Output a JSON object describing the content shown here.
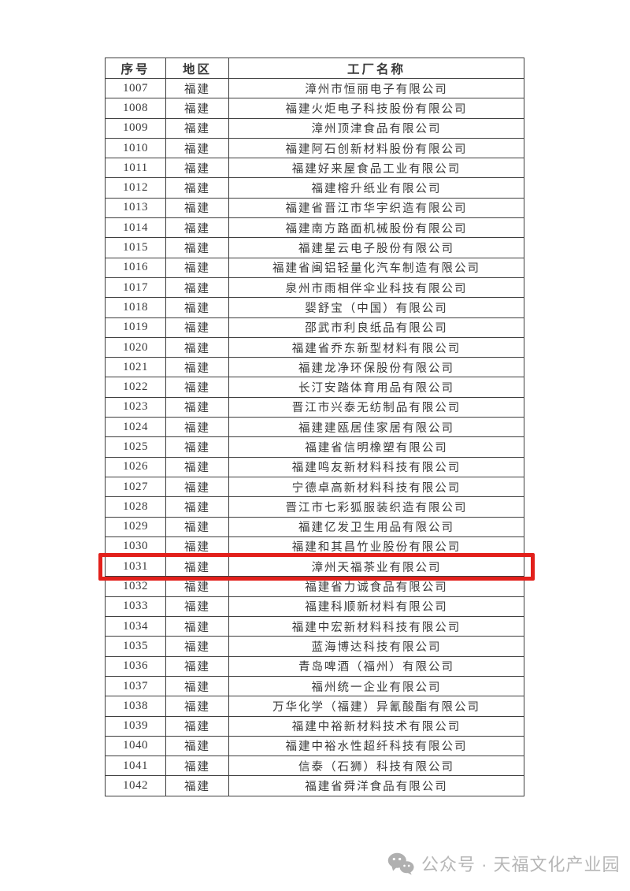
{
  "table": {
    "headers": [
      "序号",
      "地区",
      "工厂名称"
    ],
    "highlighted_no": "1031",
    "highlight_color": "#e2201b",
    "rows": [
      {
        "no": "1007",
        "region": "福建",
        "name": "漳州市恒丽电子有限公司"
      },
      {
        "no": "1008",
        "region": "福建",
        "name": "福建火炬电子科技股份有限公司"
      },
      {
        "no": "1009",
        "region": "福建",
        "name": "漳州顶津食品有限公司"
      },
      {
        "no": "1010",
        "region": "福建",
        "name": "福建阿石创新材料股份有限公司"
      },
      {
        "no": "1011",
        "region": "福建",
        "name": "福建好来屋食品工业有限公司"
      },
      {
        "no": "1012",
        "region": "福建",
        "name": "福建榕升纸业有限公司"
      },
      {
        "no": "1013",
        "region": "福建",
        "name": "福建省晋江市华宇织造有限公司"
      },
      {
        "no": "1014",
        "region": "福建",
        "name": "福建南方路面机械股份有限公司"
      },
      {
        "no": "1015",
        "region": "福建",
        "name": "福建星云电子股份有限公司"
      },
      {
        "no": "1016",
        "region": "福建",
        "name": "福建省闽铝轻量化汽车制造有限公司"
      },
      {
        "no": "1017",
        "region": "福建",
        "name": "泉州市雨相伴伞业科技有限公司"
      },
      {
        "no": "1018",
        "region": "福建",
        "name": "婴舒宝（中国）有限公司"
      },
      {
        "no": "1019",
        "region": "福建",
        "name": "邵武市利良纸品有限公司"
      },
      {
        "no": "1020",
        "region": "福建",
        "name": "福建省乔东新型材料有限公司"
      },
      {
        "no": "1021",
        "region": "福建",
        "name": "福建龙净环保股份有限公司"
      },
      {
        "no": "1022",
        "region": "福建",
        "name": "长汀安踏体育用品有限公司"
      },
      {
        "no": "1023",
        "region": "福建",
        "name": "晋江市兴泰无纺制品有限公司"
      },
      {
        "no": "1024",
        "region": "福建",
        "name": "福建建瓯居佳家居有限公司"
      },
      {
        "no": "1025",
        "region": "福建",
        "name": "福建省信明橡塑有限公司"
      },
      {
        "no": "1026",
        "region": "福建",
        "name": "福建鸣友新材料科技有限公司"
      },
      {
        "no": "1027",
        "region": "福建",
        "name": "宁德卓高新材料科技有限公司"
      },
      {
        "no": "1028",
        "region": "福建",
        "name": "晋江市七彩狐服装织造有限公司"
      },
      {
        "no": "1029",
        "region": "福建",
        "name": "福建亿发卫生用品有限公司"
      },
      {
        "no": "1030",
        "region": "福建",
        "name": "福建和其昌竹业股份有限公司"
      },
      {
        "no": "1031",
        "region": "福建",
        "name": "漳州天福茶业有限公司"
      },
      {
        "no": "1032",
        "region": "福建",
        "name": "福建省力诚食品有限公司"
      },
      {
        "no": "1033",
        "region": "福建",
        "name": "福建科顺新材料有限公司"
      },
      {
        "no": "1034",
        "region": "福建",
        "name": "福建中宏新材料科技有限公司"
      },
      {
        "no": "1035",
        "region": "福建",
        "name": "蓝海博达科技有限公司"
      },
      {
        "no": "1036",
        "region": "福建",
        "name": "青岛啤酒（福州）有限公司"
      },
      {
        "no": "1037",
        "region": "福建",
        "name": "福州统一企业有限公司"
      },
      {
        "no": "1038",
        "region": "福建",
        "name": "万华化学（福建）异氰酸酯有限公司"
      },
      {
        "no": "1039",
        "region": "福建",
        "name": "福建中裕新材料技术有限公司"
      },
      {
        "no": "1040",
        "region": "福建",
        "name": "福建中裕水性超纤科技有限公司"
      },
      {
        "no": "1041",
        "region": "福建",
        "name": "信泰（石狮）科技有限公司"
      },
      {
        "no": "1042",
        "region": "福建",
        "name": "福建省舜洋食品有限公司"
      }
    ]
  },
  "footer": {
    "icon": "wechat-icon",
    "text": "公众号 · 天福文化产业园",
    "color": "#b6b6b6",
    "icon_color": "#b0b0b0"
  }
}
